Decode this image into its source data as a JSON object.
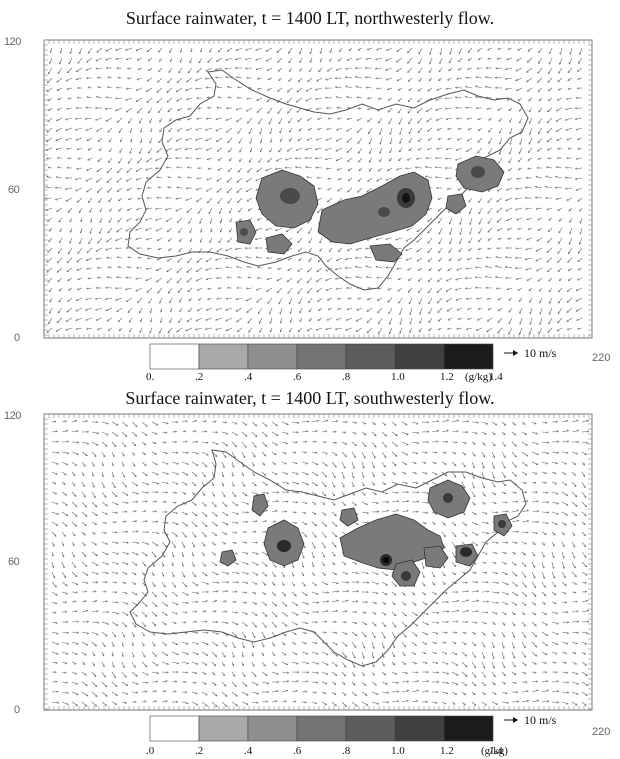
{
  "panels": [
    {
      "title": "Surface rainwater, t = 1400 LT, northwesterly flow.",
      "y_ticks": [
        "120",
        "60",
        "0"
      ],
      "x_tick_right": "220",
      "colorbar": {
        "labels": [
          "0.",
          ".2",
          ".4",
          ".6",
          ".8",
          "1.0",
          "1.2",
          "1.4"
        ],
        "unit": "(g/kg)",
        "colors": [
          "#ffffff",
          "#a9a9a9",
          "#8e8e8e",
          "#747474",
          "#5c5c5c",
          "#404040",
          "#1c1c1c"
        ]
      },
      "ref_vector": "10 m/s",
      "flow_dir_deg": 150
    },
    {
      "title": "Surface rainwater, t = 1400 LT, southwesterly flow.",
      "y_ticks": [
        "120",
        "60",
        "0"
      ],
      "x_tick_right": "220",
      "colorbar": {
        "labels": [
          ".0",
          ".2",
          ".4",
          ".6",
          ".8",
          "1.0",
          "1.2",
          "1.4"
        ],
        "unit": "(g/kg)",
        "colors": [
          "#ffffff",
          "#a9a9a9",
          "#8e8e8e",
          "#747474",
          "#5c5c5c",
          "#404040",
          "#1c1c1c"
        ]
      },
      "ref_vector": "10 m/s",
      "flow_dir_deg": 30
    }
  ]
}
